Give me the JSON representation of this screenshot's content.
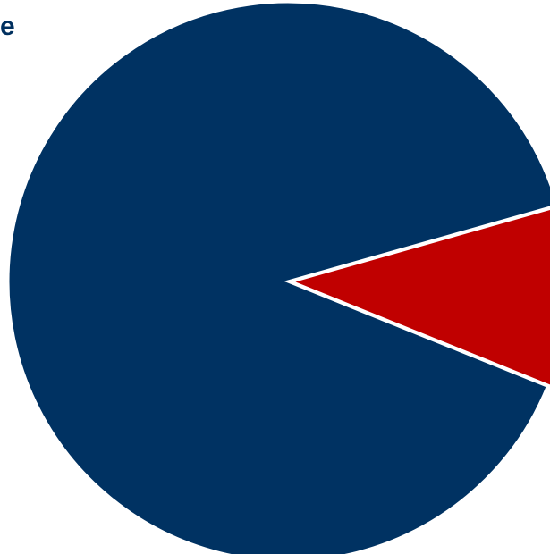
{
  "chart_data": {
    "type": "pie",
    "title": "e",
    "slices": [
      {
        "label": "",
        "value": 89.5,
        "color": "#003262"
      },
      {
        "label": "",
        "value": 10.5,
        "color": "#c00000"
      }
    ],
    "start_angle_deg": 22,
    "slice_border_color": "#ffffff",
    "legend": "none"
  }
}
